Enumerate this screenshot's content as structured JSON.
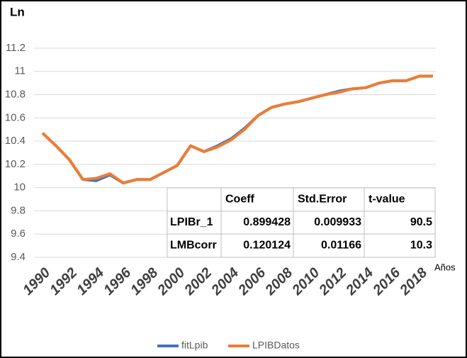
{
  "chart_data": {
    "type": "line",
    "y_label": "Ln",
    "x_label": "Años",
    "x": [
      1990,
      1991,
      1992,
      1993,
      1994,
      1995,
      1996,
      1997,
      1998,
      1999,
      2000,
      2001,
      2002,
      2003,
      2004,
      2005,
      2006,
      2007,
      2008,
      2009,
      2010,
      2011,
      2012,
      2013,
      2014,
      2015,
      2016,
      2017,
      2018,
      2019
    ],
    "xlim": [
      1990,
      2019
    ],
    "xticks": [
      1990,
      1992,
      1994,
      1996,
      1998,
      2000,
      2002,
      2004,
      2006,
      2008,
      2010,
      2012,
      2014,
      2016,
      2018
    ],
    "ylim": [
      9.4,
      11.2
    ],
    "yticks": [
      9.4,
      9.6,
      9.8,
      10,
      10.2,
      10.4,
      10.6,
      10.8,
      11,
      11.2
    ],
    "grid": true,
    "legend": "bottom",
    "series": [
      {
        "name": "fitLpib",
        "color": "#4472c4",
        "values": [
          10.47,
          10.36,
          10.24,
          10.07,
          10.06,
          10.11,
          10.04,
          10.07,
          10.07,
          10.13,
          10.19,
          10.36,
          10.31,
          10.36,
          10.42,
          10.51,
          10.62,
          10.69,
          10.72,
          10.74,
          10.77,
          10.8,
          10.83,
          10.85,
          10.86,
          10.9,
          10.92,
          10.92,
          10.96,
          10.96
        ]
      },
      {
        "name": "LPIBDatos",
        "color": "#ed7d31",
        "values": [
          10.47,
          10.36,
          10.24,
          10.07,
          10.08,
          10.12,
          10.04,
          10.07,
          10.07,
          10.13,
          10.19,
          10.36,
          10.31,
          10.35,
          10.41,
          10.5,
          10.62,
          10.69,
          10.72,
          10.74,
          10.77,
          10.8,
          10.82,
          10.85,
          10.86,
          10.9,
          10.92,
          10.92,
          10.96,
          10.96
        ]
      }
    ]
  },
  "table": {
    "columns": [
      "Coeff",
      "Std.Error",
      "t-value"
    ],
    "rows": [
      {
        "label": "LPIBr_1",
        "values": [
          0.899428,
          0.009933,
          90.5
        ]
      },
      {
        "label": "LMBcorr",
        "values": [
          0.120124,
          0.01166,
          10.3
        ]
      }
    ]
  }
}
